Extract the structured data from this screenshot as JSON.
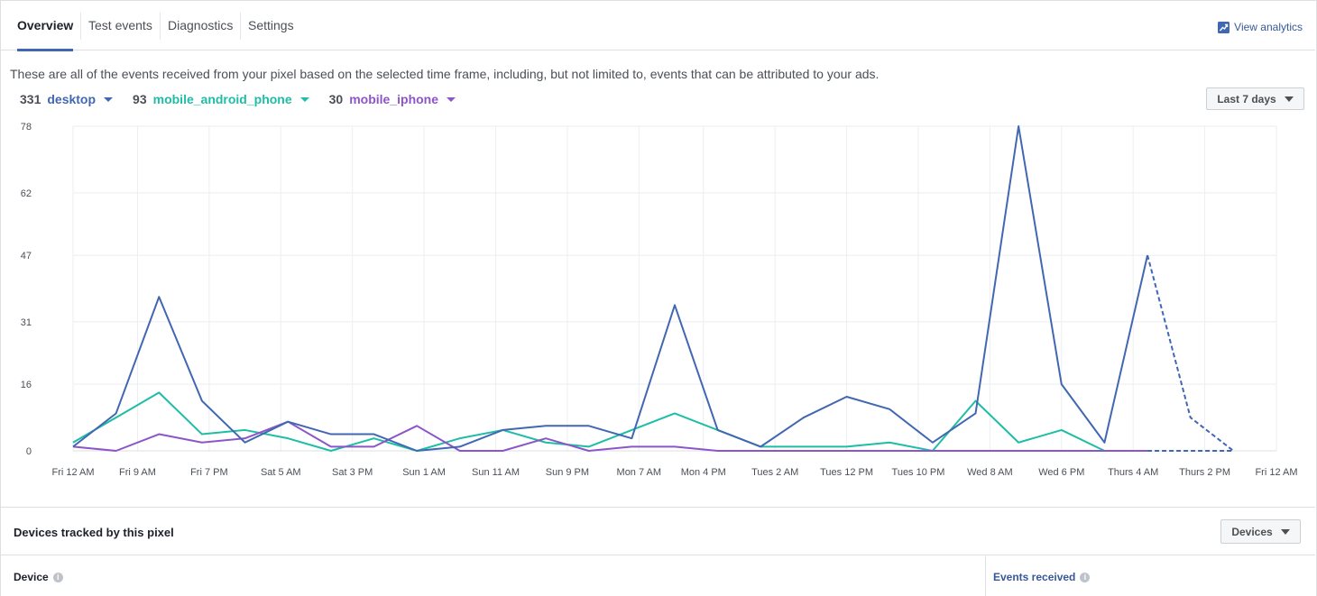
{
  "tabs": [
    {
      "label": "Overview",
      "active": true
    },
    {
      "label": "Test events",
      "active": false
    },
    {
      "label": "Diagnostics",
      "active": false
    },
    {
      "label": "Settings",
      "active": false
    }
  ],
  "view_analytics": {
    "label": "View analytics",
    "icon": "analytics-chart-icon"
  },
  "description": "These are all of the events received from your pixel based on the selected time frame, including, but not limited to, events that can be attributed to your ads.",
  "legend": [
    {
      "count": "331",
      "name": "desktop",
      "color": "#4267b2"
    },
    {
      "count": "93",
      "name": "mobile_android_phone",
      "color": "#1ebda5"
    },
    {
      "count": "30",
      "name": "mobile_iphone",
      "color": "#8c55c8"
    }
  ],
  "time_range_button": "Last 7 days",
  "chart_data": {
    "type": "line",
    "y_ticks": [
      "78",
      "62",
      "47",
      "31",
      "16",
      "0"
    ],
    "ylim": [
      0,
      78
    ],
    "x_ticks": [
      "Fri 12 AM",
      "Fri 9 AM",
      "Fri 7 PM",
      "Sat 5 AM",
      "Sat 3 PM",
      "Sun 1 AM",
      "Sun 11 AM",
      "Sun 9 PM",
      "Mon 7 AM",
      "Mon 4 PM",
      "Tues 2 AM",
      "Tues 12 PM",
      "Tues 10 PM",
      "Wed 8 AM",
      "Wed 6 PM",
      "Thurs 4 AM",
      "Thurs 2 PM",
      "Fri 12 AM"
    ],
    "x_hours": [
      0,
      9,
      19,
      29,
      39,
      49,
      59,
      69,
      79,
      88,
      98,
      108,
      118,
      128,
      138,
      148,
      158,
      168
    ],
    "grid": true,
    "series": [
      {
        "name": "desktop",
        "color": "#4267b2",
        "hours": [
          0,
          6,
          12,
          18,
          24,
          30,
          36,
          42,
          48,
          54,
          60,
          66,
          72,
          78,
          84,
          90,
          96,
          102,
          108,
          114,
          120,
          126,
          132,
          138,
          144,
          150,
          156,
          162
        ],
        "values": [
          1,
          9,
          37,
          12,
          2,
          7,
          4,
          4,
          0,
          1,
          5,
          6,
          6,
          3,
          35,
          5,
          1,
          8,
          13,
          10,
          2,
          9,
          78,
          16,
          2,
          47,
          8,
          0
        ],
        "dashed_from_index": 25
      },
      {
        "name": "mobile_android_phone",
        "color": "#1ebda5",
        "hours": [
          0,
          6,
          12,
          18,
          24,
          30,
          36,
          42,
          48,
          54,
          60,
          66,
          72,
          78,
          84,
          90,
          96,
          102,
          108,
          114,
          120,
          126,
          132,
          138,
          144
        ],
        "values": [
          2,
          8,
          14,
          4,
          5,
          3,
          0,
          3,
          0,
          3,
          5,
          2,
          1,
          5,
          9,
          5,
          1,
          1,
          1,
          2,
          0,
          12,
          2,
          5,
          0
        ]
      },
      {
        "name": "mobile_iphone",
        "color": "#8c55c8",
        "hours": [
          0,
          6,
          12,
          18,
          24,
          30,
          36,
          42,
          48,
          54,
          60,
          66,
          72,
          78,
          84,
          90,
          96,
          102,
          108,
          114,
          120,
          126,
          132,
          138,
          144,
          150
        ],
        "values": [
          1,
          0,
          4,
          2,
          3,
          7,
          1,
          1,
          6,
          0,
          0,
          3,
          0,
          1,
          1,
          0,
          0,
          0,
          0,
          0,
          0,
          0,
          0,
          0,
          0,
          0
        ]
      }
    ]
  },
  "devices": {
    "title": "Devices tracked by this pixel",
    "button": "Devices",
    "columns": {
      "device": "Device",
      "events": "Events received"
    }
  }
}
